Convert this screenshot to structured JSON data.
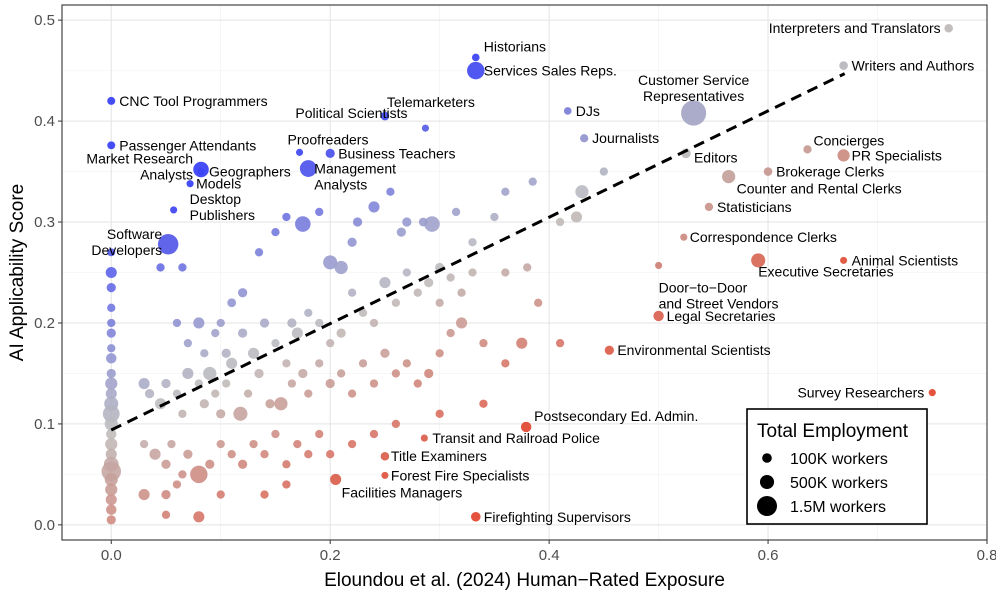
{
  "chart_data": {
    "type": "scatter",
    "xlabel": "Eloundou et al. (2024) Human−Rated Exposure",
    "ylabel": "AI Applicability Score",
    "xlim": [
      -0.045,
      0.8
    ],
    "ylim": [
      -0.015,
      0.515
    ],
    "x_ticks": [
      "0.0",
      "0.2",
      "0.4",
      "0.6",
      "0.8"
    ],
    "y_ticks": [
      "0.0",
      "0.1",
      "0.2",
      "0.3",
      "0.4",
      "0.5"
    ],
    "grid": true,
    "trend_line": {
      "style": "dashed",
      "x": [
        0.0,
        0.67
      ],
      "y": [
        0.094,
        0.447
      ]
    },
    "legend": {
      "title": "Total Employment",
      "position": "bottom-right",
      "entries": [
        {
          "label": "100K workers",
          "employment": 100000
        },
        {
          "label": "500K workers",
          "employment": 500000
        },
        {
          "label": "1.5M workers",
          "employment": 1500000
        }
      ]
    },
    "color_scale": {
      "low": "#e34a33",
      "mid": "#bdbdbd",
      "high": "#3b43f5"
    },
    "labeled_points": [
      {
        "label": "Interpreters and Translators",
        "x": 0.765,
        "y": 0.492,
        "employment": 50000
      },
      {
        "label": "Historians",
        "x": 0.333,
        "y": 0.463,
        "employment": 20000
      },
      {
        "label": "Services Sales Reps.",
        "x": 0.333,
        "y": 0.45,
        "employment": 1000000
      },
      {
        "label": "Writers and Authors",
        "x": 0.669,
        "y": 0.455,
        "employment": 50000
      },
      {
        "label": "Customer Service Representatives",
        "x": 0.532,
        "y": 0.408,
        "employment": 2800000
      },
      {
        "label": "CNC Tool Programmers",
        "x": 0.0,
        "y": 0.42,
        "employment": 30000
      },
      {
        "label": "DJs",
        "x": 0.417,
        "y": 0.41,
        "employment": 20000
      },
      {
        "label": "Telemarketers",
        "x": 0.25,
        "y": 0.405,
        "employment": 50000
      },
      {
        "label": "Political Scientists",
        "x": 0.287,
        "y": 0.393,
        "employment": 10000
      },
      {
        "label": "Journalists",
        "x": 0.432,
        "y": 0.383,
        "employment": 40000
      },
      {
        "label": "Passenger Attendants",
        "x": 0.0,
        "y": 0.376,
        "employment": 30000
      },
      {
        "label": "Proofreaders",
        "x": 0.172,
        "y": 0.369,
        "employment": 10000
      },
      {
        "label": "Concierges",
        "x": 0.636,
        "y": 0.372,
        "employment": 40000
      },
      {
        "label": "Business Teachers",
        "x": 0.2,
        "y": 0.368,
        "employment": 80000
      },
      {
        "label": "Editors",
        "x": 0.525,
        "y": 0.368,
        "employment": 100000
      },
      {
        "label": "PR Specialists",
        "x": 0.669,
        "y": 0.366,
        "employment": 300000
      },
      {
        "label": "Market Research Analysts",
        "x": 0.082,
        "y": 0.352,
        "employment": 700000
      },
      {
        "label": "Geographers",
        "x": 0.082,
        "y": 0.35,
        "employment": 10000
      },
      {
        "label": "Management Analysts",
        "x": 0.18,
        "y": 0.353,
        "employment": 900000
      },
      {
        "label": "Brokerage Clerks",
        "x": 0.6,
        "y": 0.35,
        "employment": 50000
      },
      {
        "label": "Models",
        "x": 0.072,
        "y": 0.338,
        "employment": 10000
      },
      {
        "label": "Counter and Rental Clerks",
        "x": 0.564,
        "y": 0.345,
        "employment": 400000
      },
      {
        "label": "Desktop Publishers",
        "x": 0.057,
        "y": 0.312,
        "employment": 10000
      },
      {
        "label": "Statisticians",
        "x": 0.546,
        "y": 0.315,
        "employment": 40000
      },
      {
        "label": "Software Developers",
        "x": 0.052,
        "y": 0.278,
        "employment": 1600000
      },
      {
        "label": "Correspondence Clerks",
        "x": 0.523,
        "y": 0.285,
        "employment": 10000
      },
      {
        "label": "Animal Scientists",
        "x": 0.669,
        "y": 0.262,
        "employment": 10000
      },
      {
        "label": "Executive Secretaries",
        "x": 0.591,
        "y": 0.262,
        "employment": 500000
      },
      {
        "label": "Door-to-Door and Street Vendors",
        "x": 0.5,
        "y": 0.257,
        "employment": 10000
      },
      {
        "label": "Legal Secretaries",
        "x": 0.5,
        "y": 0.207,
        "employment": 150000
      },
      {
        "label": "Environmental Scientists",
        "x": 0.455,
        "y": 0.173,
        "employment": 80000
      },
      {
        "label": "Survey Researchers",
        "x": 0.75,
        "y": 0.131,
        "employment": 10000
      },
      {
        "label": "Postsecondary Ed. Admin.",
        "x": 0.379,
        "y": 0.097,
        "employment": 150000
      },
      {
        "label": "Transit and Railroad Police",
        "x": 0.286,
        "y": 0.086,
        "employment": 10000
      },
      {
        "label": "Title Examiners",
        "x": 0.25,
        "y": 0.068,
        "employment": 50000
      },
      {
        "label": "Forest Fire Specialists",
        "x": 0.25,
        "y": 0.049,
        "employment": 10000
      },
      {
        "label": "Facilities Managers",
        "x": 0.205,
        "y": 0.045,
        "employment": 200000
      },
      {
        "label": "Firefighting Supervisors",
        "x": 0.333,
        "y": 0.008,
        "employment": 100000
      }
    ],
    "points": [
      {
        "x": 0,
        "y": 0.27,
        "e": 30000
      },
      {
        "x": 0,
        "y": 0.25,
        "e": 200000
      },
      {
        "x": 0,
        "y": 0.235,
        "e": 80000
      },
      {
        "x": 0,
        "y": 0.215,
        "e": 40000
      },
      {
        "x": 0,
        "y": 0.2,
        "e": 40000
      },
      {
        "x": 0,
        "y": 0.19,
        "e": 80000
      },
      {
        "x": 0,
        "y": 0.175,
        "e": 40000
      },
      {
        "x": 0,
        "y": 0.165,
        "e": 150000
      },
      {
        "x": 0,
        "y": 0.15,
        "e": 80000
      },
      {
        "x": 0,
        "y": 0.14,
        "e": 300000
      },
      {
        "x": 0,
        "y": 0.13,
        "e": 200000
      },
      {
        "x": 0,
        "y": 0.12,
        "e": 500000
      },
      {
        "x": 0,
        "y": 0.11,
        "e": 900000
      },
      {
        "x": 0,
        "y": 0.1,
        "e": 400000
      },
      {
        "x": 0,
        "y": 0.09,
        "e": 150000
      },
      {
        "x": 0,
        "y": 0.08,
        "e": 300000
      },
      {
        "x": 0,
        "y": 0.07,
        "e": 200000
      },
      {
        "x": 0,
        "y": 0.06,
        "e": 600000
      },
      {
        "x": 0,
        "y": 0.053,
        "e": 1400000
      },
      {
        "x": 0,
        "y": 0.045,
        "e": 400000
      },
      {
        "x": 0,
        "y": 0.035,
        "e": 300000
      },
      {
        "x": 0,
        "y": 0.025,
        "e": 200000
      },
      {
        "x": 0,
        "y": 0.015,
        "e": 150000
      },
      {
        "x": 0,
        "y": 0.005,
        "e": 80000
      },
      {
        "x": 0.045,
        "y": 0.255,
        "e": 40000
      },
      {
        "x": 0.065,
        "y": 0.255,
        "e": 40000
      },
      {
        "x": 0.11,
        "y": 0.22,
        "e": 60000
      },
      {
        "x": 0.12,
        "y": 0.23,
        "e": 80000
      },
      {
        "x": 0.135,
        "y": 0.27,
        "e": 40000
      },
      {
        "x": 0.15,
        "y": 0.29,
        "e": 40000
      },
      {
        "x": 0.16,
        "y": 0.305,
        "e": 40000
      },
      {
        "x": 0.175,
        "y": 0.298,
        "e": 700000
      },
      {
        "x": 0.19,
        "y": 0.31,
        "e": 40000
      },
      {
        "x": 0.2,
        "y": 0.26,
        "e": 500000
      },
      {
        "x": 0.21,
        "y": 0.255,
        "e": 400000
      },
      {
        "x": 0.22,
        "y": 0.28,
        "e": 80000
      },
      {
        "x": 0.225,
        "y": 0.3,
        "e": 80000
      },
      {
        "x": 0.24,
        "y": 0.315,
        "e": 200000
      },
      {
        "x": 0.255,
        "y": 0.33,
        "e": 40000
      },
      {
        "x": 0.265,
        "y": 0.29,
        "e": 80000
      },
      {
        "x": 0.27,
        "y": 0.3,
        "e": 80000
      },
      {
        "x": 0.285,
        "y": 0.3,
        "e": 60000
      },
      {
        "x": 0.293,
        "y": 0.298,
        "e": 700000
      },
      {
        "x": 0.3,
        "y": 0.255,
        "e": 80000
      },
      {
        "x": 0.315,
        "y": 0.31,
        "e": 40000
      },
      {
        "x": 0.33,
        "y": 0.28,
        "e": 40000
      },
      {
        "x": 0.35,
        "y": 0.305,
        "e": 40000
      },
      {
        "x": 0.36,
        "y": 0.33,
        "e": 40000
      },
      {
        "x": 0.385,
        "y": 0.34,
        "e": 40000
      },
      {
        "x": 0.41,
        "y": 0.3,
        "e": 40000
      },
      {
        "x": 0.43,
        "y": 0.33,
        "e": 400000
      },
      {
        "x": 0.425,
        "y": 0.305,
        "e": 200000
      },
      {
        "x": 0.45,
        "y": 0.35,
        "e": 40000
      },
      {
        "x": 0.06,
        "y": 0.2,
        "e": 40000
      },
      {
        "x": 0.07,
        "y": 0.18,
        "e": 40000
      },
      {
        "x": 0.08,
        "y": 0.2,
        "e": 200000
      },
      {
        "x": 0.085,
        "y": 0.17,
        "e": 40000
      },
      {
        "x": 0.09,
        "y": 0.15,
        "e": 400000
      },
      {
        "x": 0.095,
        "y": 0.19,
        "e": 40000
      },
      {
        "x": 0.1,
        "y": 0.2,
        "e": 40000
      },
      {
        "x": 0.105,
        "y": 0.17,
        "e": 80000
      },
      {
        "x": 0.11,
        "y": 0.16,
        "e": 200000
      },
      {
        "x": 0.12,
        "y": 0.19,
        "e": 80000
      },
      {
        "x": 0.13,
        "y": 0.17,
        "e": 200000
      },
      {
        "x": 0.14,
        "y": 0.2,
        "e": 80000
      },
      {
        "x": 0.15,
        "y": 0.18,
        "e": 40000
      },
      {
        "x": 0.16,
        "y": 0.16,
        "e": 40000
      },
      {
        "x": 0.165,
        "y": 0.2,
        "e": 80000
      },
      {
        "x": 0.17,
        "y": 0.19,
        "e": 200000
      },
      {
        "x": 0.18,
        "y": 0.21,
        "e": 40000
      },
      {
        "x": 0.19,
        "y": 0.2,
        "e": 40000
      },
      {
        "x": 0.2,
        "y": 0.18,
        "e": 40000
      },
      {
        "x": 0.21,
        "y": 0.19,
        "e": 80000
      },
      {
        "x": 0.22,
        "y": 0.23,
        "e": 40000
      },
      {
        "x": 0.23,
        "y": 0.21,
        "e": 40000
      },
      {
        "x": 0.24,
        "y": 0.2,
        "e": 40000
      },
      {
        "x": 0.25,
        "y": 0.24,
        "e": 200000
      },
      {
        "x": 0.26,
        "y": 0.22,
        "e": 40000
      },
      {
        "x": 0.27,
        "y": 0.25,
        "e": 40000
      },
      {
        "x": 0.28,
        "y": 0.23,
        "e": 40000
      },
      {
        "x": 0.29,
        "y": 0.24,
        "e": 80000
      },
      {
        "x": 0.3,
        "y": 0.22,
        "e": 40000
      },
      {
        "x": 0.31,
        "y": 0.245,
        "e": 40000
      },
      {
        "x": 0.32,
        "y": 0.23,
        "e": 40000
      },
      {
        "x": 0.33,
        "y": 0.25,
        "e": 40000
      },
      {
        "x": 0.36,
        "y": 0.25,
        "e": 40000
      },
      {
        "x": 0.39,
        "y": 0.22,
        "e": 40000
      },
      {
        "x": 0.38,
        "y": 0.255,
        "e": 40000
      },
      {
        "x": 0.03,
        "y": 0.14,
        "e": 200000
      },
      {
        "x": 0.035,
        "y": 0.13,
        "e": 80000
      },
      {
        "x": 0.045,
        "y": 0.12,
        "e": 200000
      },
      {
        "x": 0.05,
        "y": 0.14,
        "e": 80000
      },
      {
        "x": 0.06,
        "y": 0.13,
        "e": 40000
      },
      {
        "x": 0.065,
        "y": 0.11,
        "e": 40000
      },
      {
        "x": 0.07,
        "y": 0.15,
        "e": 200000
      },
      {
        "x": 0.08,
        "y": 0.14,
        "e": 40000
      },
      {
        "x": 0.085,
        "y": 0.12,
        "e": 80000
      },
      {
        "x": 0.095,
        "y": 0.13,
        "e": 40000
      },
      {
        "x": 0.1,
        "y": 0.11,
        "e": 80000
      },
      {
        "x": 0.105,
        "y": 0.14,
        "e": 40000
      },
      {
        "x": 0.118,
        "y": 0.11,
        "e": 500000
      },
      {
        "x": 0.125,
        "y": 0.13,
        "e": 40000
      },
      {
        "x": 0.135,
        "y": 0.15,
        "e": 80000
      },
      {
        "x": 0.145,
        "y": 0.12,
        "e": 80000
      },
      {
        "x": 0.155,
        "y": 0.12,
        "e": 400000
      },
      {
        "x": 0.165,
        "y": 0.14,
        "e": 40000
      },
      {
        "x": 0.175,
        "y": 0.15,
        "e": 80000
      },
      {
        "x": 0.18,
        "y": 0.13,
        "e": 40000
      },
      {
        "x": 0.19,
        "y": 0.16,
        "e": 40000
      },
      {
        "x": 0.2,
        "y": 0.14,
        "e": 80000
      },
      {
        "x": 0.21,
        "y": 0.15,
        "e": 40000
      },
      {
        "x": 0.22,
        "y": 0.13,
        "e": 40000
      },
      {
        "x": 0.23,
        "y": 0.16,
        "e": 40000
      },
      {
        "x": 0.24,
        "y": 0.14,
        "e": 40000
      },
      {
        "x": 0.25,
        "y": 0.17,
        "e": 80000
      },
      {
        "x": 0.26,
        "y": 0.15,
        "e": 40000
      },
      {
        "x": 0.27,
        "y": 0.16,
        "e": 40000
      },
      {
        "x": 0.28,
        "y": 0.14,
        "e": 40000
      },
      {
        "x": 0.29,
        "y": 0.15,
        "e": 80000
      },
      {
        "x": 0.3,
        "y": 0.17,
        "e": 40000
      },
      {
        "x": 0.31,
        "y": 0.19,
        "e": 40000
      },
      {
        "x": 0.32,
        "y": 0.2,
        "e": 200000
      },
      {
        "x": 0.34,
        "y": 0.18,
        "e": 40000
      },
      {
        "x": 0.36,
        "y": 0.16,
        "e": 40000
      },
      {
        "x": 0.375,
        "y": 0.18,
        "e": 200000
      },
      {
        "x": 0.41,
        "y": 0.18,
        "e": 40000
      },
      {
        "x": 0.03,
        "y": 0.08,
        "e": 40000
      },
      {
        "x": 0.04,
        "y": 0.07,
        "e": 200000
      },
      {
        "x": 0.05,
        "y": 0.06,
        "e": 80000
      },
      {
        "x": 0.055,
        "y": 0.08,
        "e": 40000
      },
      {
        "x": 0.065,
        "y": 0.05,
        "e": 40000
      },
      {
        "x": 0.07,
        "y": 0.07,
        "e": 80000
      },
      {
        "x": 0.08,
        "y": 0.05,
        "e": 1000000
      },
      {
        "x": 0.09,
        "y": 0.06,
        "e": 80000
      },
      {
        "x": 0.1,
        "y": 0.08,
        "e": 40000
      },
      {
        "x": 0.11,
        "y": 0.07,
        "e": 40000
      },
      {
        "x": 0.12,
        "y": 0.06,
        "e": 80000
      },
      {
        "x": 0.13,
        "y": 0.08,
        "e": 40000
      },
      {
        "x": 0.14,
        "y": 0.07,
        "e": 40000
      },
      {
        "x": 0.15,
        "y": 0.09,
        "e": 40000
      },
      {
        "x": 0.16,
        "y": 0.06,
        "e": 40000
      },
      {
        "x": 0.17,
        "y": 0.08,
        "e": 40000
      },
      {
        "x": 0.18,
        "y": 0.07,
        "e": 40000
      },
      {
        "x": 0.19,
        "y": 0.09,
        "e": 40000
      },
      {
        "x": 0.2,
        "y": 0.07,
        "e": 40000
      },
      {
        "x": 0.22,
        "y": 0.08,
        "e": 40000
      },
      {
        "x": 0.24,
        "y": 0.09,
        "e": 40000
      },
      {
        "x": 0.26,
        "y": 0.1,
        "e": 40000
      },
      {
        "x": 0.3,
        "y": 0.11,
        "e": 40000
      },
      {
        "x": 0.34,
        "y": 0.12,
        "e": 40000
      },
      {
        "x": 0.03,
        "y": 0.03,
        "e": 200000
      },
      {
        "x": 0.05,
        "y": 0.03,
        "e": 80000
      },
      {
        "x": 0.06,
        "y": 0.04,
        "e": 40000
      },
      {
        "x": 0.08,
        "y": 0.008,
        "e": 200000
      },
      {
        "x": 0.1,
        "y": 0.03,
        "e": 40000
      },
      {
        "x": 0.14,
        "y": 0.03,
        "e": 40000
      },
      {
        "x": 0.16,
        "y": 0.04,
        "e": 40000
      },
      {
        "x": 0.05,
        "y": 0.01,
        "e": 40000
      }
    ]
  }
}
